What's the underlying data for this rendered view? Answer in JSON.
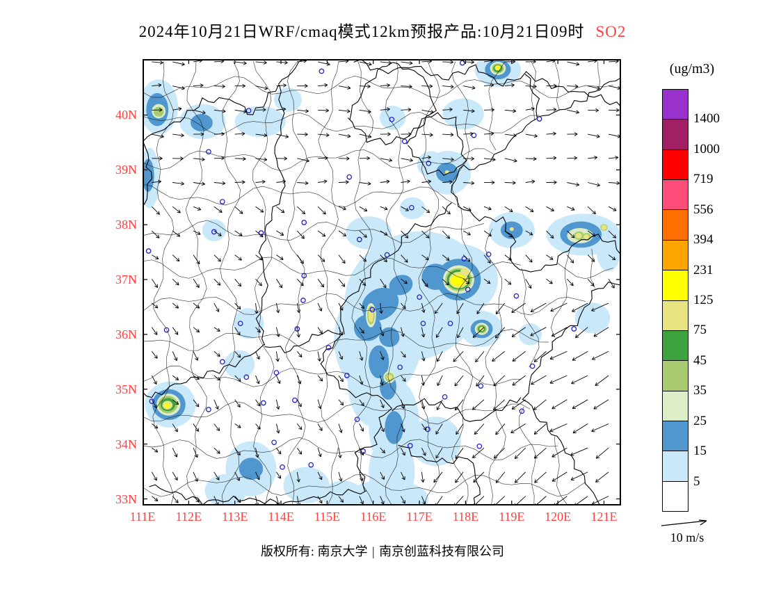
{
  "title": {
    "main": "2024年10月21日WRF/cmaq模式12km预报产品:10月21日09时",
    "species": "SO2"
  },
  "footer": {
    "left": "版权所有: 南京大学",
    "divider": "|",
    "right": "南京创蓝科技有限公司"
  },
  "colors": {
    "tick_label": "#FF4040",
    "species_label": "#FF4040",
    "station_marker": "#2222CC",
    "frame": "#000000"
  },
  "chart_data": {
    "type": "heatmap",
    "title": "2024年10月21日WRF/cmaq模式12km预报产品:10月21日09时 SO2",
    "variable": "SO2",
    "units_label": "(ug/m3)",
    "x_ticks": [
      "111E",
      "112E",
      "113E",
      "114E",
      "115E",
      "116E",
      "117E",
      "118E",
      "119E",
      "120E",
      "121E"
    ],
    "x_tick_values": [
      111,
      112,
      113,
      114,
      115,
      116,
      117,
      118,
      119,
      120,
      121
    ],
    "y_ticks": [
      "33N",
      "34N",
      "35N",
      "36N",
      "37N",
      "38N",
      "39N",
      "40N"
    ],
    "y_tick_values": [
      33,
      34,
      35,
      36,
      37,
      38,
      39,
      40
    ],
    "xlim": [
      111,
      121.37
    ],
    "ylim": [
      32.88,
      41.02
    ],
    "grid": false,
    "colorbar": {
      "units": "(ug/m3)",
      "levels_top_to_bottom": [
        1400,
        1000,
        719,
        556,
        394,
        231,
        125,
        75,
        45,
        35,
        25,
        15,
        5
      ],
      "colors_bottom_to_top": [
        "#FFFFFF",
        "#C9E8FA",
        "#4F97CE",
        "#DCEDC8",
        "#A9CC70",
        "#3EA23E",
        "#E8E482",
        "#FFFF00",
        "#FFA500",
        "#FF7000",
        "#FF4D79",
        "#FF0000",
        "#A12064",
        "#9932CC"
      ]
    },
    "wind_legend": {
      "label": "10 m/s"
    },
    "hotspots": {
      "L5": [
        [
          111.35,
          40.15,
          0.42,
          0.5
        ],
        [
          112.3,
          39.88,
          0.5,
          0.32
        ],
        [
          113.55,
          39.88,
          0.55,
          0.28
        ],
        [
          114.15,
          40.28,
          0.3,
          0.22
        ],
        [
          111.15,
          38.85,
          0.22,
          0.55
        ],
        [
          117.62,
          38.95,
          0.5,
          0.4
        ],
        [
          117.95,
          40.02,
          0.45,
          0.28
        ],
        [
          118.7,
          40.82,
          0.5,
          0.3
        ],
        [
          116.42,
          39.95,
          0.28,
          0.22
        ],
        [
          117.25,
          39.1,
          0.3,
          0.24
        ],
        [
          119.0,
          37.9,
          0.5,
          0.33
        ],
        [
          120.55,
          37.82,
          0.8,
          0.38
        ],
        [
          121.1,
          37.6,
          0.28,
          0.45
        ],
        [
          116.9,
          36.7,
          1.55,
          1.15,
          -25
        ],
        [
          116.1,
          35.9,
          0.95,
          1.05
        ],
        [
          116.05,
          35.1,
          0.6,
          0.8
        ],
        [
          116.45,
          34.35,
          0.55,
          0.85
        ],
        [
          116.4,
          33.5,
          0.5,
          0.65
        ],
        [
          116.3,
          33.0,
          0.9,
          0.35
        ],
        [
          117.85,
          37.0,
          0.85,
          0.65
        ],
        [
          118.35,
          36.1,
          0.45,
          0.33
        ],
        [
          115.9,
          37.85,
          0.5,
          0.3
        ],
        [
          113.3,
          36.2,
          0.33,
          0.28
        ],
        [
          113.1,
          35.45,
          0.33,
          0.26
        ],
        [
          111.6,
          34.72,
          0.55,
          0.42
        ],
        [
          113.35,
          33.55,
          0.55,
          0.5
        ],
        [
          112.8,
          33.15,
          0.45,
          0.3
        ],
        [
          114.55,
          33.25,
          0.5,
          0.33
        ],
        [
          115.35,
          33.05,
          0.45,
          0.28
        ],
        [
          117.35,
          34.05,
          0.55,
          0.45
        ],
        [
          120.75,
          36.3,
          0.38,
          0.28
        ],
        [
          119.4,
          36.0,
          0.25,
          0.2
        ],
        [
          116.85,
          38.3,
          0.28,
          0.2
        ],
        [
          112.55,
          37.9,
          0.26,
          0.2
        ]
      ],
      "L15": [
        [
          116.15,
          36.55,
          0.42,
          0.28,
          -30
        ],
        [
          115.88,
          36.12,
          0.3,
          0.24
        ],
        [
          116.35,
          35.95,
          0.22,
          0.18
        ],
        [
          116.12,
          35.5,
          0.22,
          0.3
        ],
        [
          116.32,
          35.05,
          0.18,
          0.24
        ],
        [
          117.35,
          37.05,
          0.3,
          0.24
        ],
        [
          117.85,
          37.0,
          0.48,
          0.38
        ],
        [
          116.6,
          36.9,
          0.26,
          0.18,
          -20
        ],
        [
          113.35,
          33.55,
          0.26,
          0.2
        ],
        [
          111.57,
          34.72,
          0.36,
          0.28
        ],
        [
          111.32,
          40.1,
          0.24,
          0.3
        ],
        [
          112.28,
          39.86,
          0.24,
          0.16
        ],
        [
          111.12,
          38.9,
          0.13,
          0.3
        ],
        [
          120.5,
          37.82,
          0.45,
          0.24
        ],
        [
          118.7,
          40.83,
          0.28,
          0.18
        ],
        [
          119.0,
          37.9,
          0.24,
          0.16
        ],
        [
          118.35,
          36.1,
          0.24,
          0.17
        ],
        [
          116.45,
          34.3,
          0.2,
          0.3
        ],
        [
          115.95,
          36.35,
          0.16,
          0.3
        ],
        [
          117.6,
          38.95,
          0.24,
          0.18
        ]
      ],
      "L25": [
        [
          117.85,
          37.0,
          0.34,
          0.26
        ],
        [
          111.56,
          34.72,
          0.26,
          0.2
        ],
        [
          111.35,
          40.07,
          0.15,
          0.13
        ],
        [
          118.7,
          40.85,
          0.17,
          0.12
        ],
        [
          118.35,
          36.1,
          0.15,
          0.11
        ],
        [
          116.35,
          35.22,
          0.13,
          0.11
        ],
        [
          115.95,
          36.35,
          0.11,
          0.22
        ],
        [
          120.48,
          37.8,
          0.28,
          0.14
        ]
      ],
      "L35": [
        [
          117.85,
          37.0,
          0.29,
          0.21
        ],
        [
          111.55,
          34.72,
          0.21,
          0.16
        ],
        [
          118.7,
          40.85,
          0.13,
          0.09
        ],
        [
          111.35,
          40.06,
          0.11,
          0.09
        ],
        [
          118.35,
          36.1,
          0.11,
          0.08
        ],
        [
          116.35,
          35.22,
          0.1,
          0.08
        ],
        [
          120.46,
          37.8,
          0.11,
          0.08
        ],
        [
          120.63,
          37.78,
          0.09,
          0.07
        ],
        [
          115.95,
          36.35,
          0.08,
          0.17
        ],
        [
          121.0,
          37.95,
          0.08,
          0.06
        ]
      ],
      "L45": [
        [
          117.85,
          37.0,
          0.25,
          0.18
        ],
        [
          111.55,
          34.72,
          0.16,
          0.12
        ],
        [
          118.7,
          40.85,
          0.1,
          0.07
        ],
        [
          118.35,
          36.1,
          0.08,
          0.06
        ]
      ],
      "L75": [
        [
          117.85,
          36.99,
          0.21,
          0.15
        ],
        [
          117.98,
          37.13,
          0.1,
          0.08
        ],
        [
          111.54,
          34.71,
          0.11,
          0.08
        ],
        [
          115.95,
          36.35,
          0.055,
          0.13
        ],
        [
          116.35,
          35.22,
          0.065,
          0.05
        ],
        [
          120.45,
          37.8,
          0.07,
          0.05
        ],
        [
          120.62,
          37.78,
          0.06,
          0.045
        ],
        [
          121.0,
          37.95,
          0.06,
          0.045
        ],
        [
          119.0,
          37.92,
          0.045,
          0.035
        ],
        [
          118.7,
          40.86,
          0.07,
          0.05
        ],
        [
          117.6,
          38.96,
          0.045,
          0.035
        ],
        [
          118.35,
          36.1,
          0.05,
          0.04
        ]
      ],
      "L125": [
        [
          117.84,
          36.98,
          0.16,
          0.11
        ],
        [
          118.7,
          40.86,
          0.045,
          0.035
        ],
        [
          111.53,
          34.7,
          0.055,
          0.04
        ]
      ]
    },
    "stations": [
      [
        116.4,
        39.92
      ],
      [
        117.2,
        39.12
      ],
      [
        114.5,
        38.04
      ],
      [
        112.55,
        37.87
      ],
      [
        113.62,
        34.75
      ],
      [
        117.0,
        36.68
      ],
      [
        118.05,
        36.82
      ],
      [
        120.35,
        36.1
      ],
      [
        115.48,
        38.87
      ],
      [
        116.83,
        38.31
      ],
      [
        115.7,
        37.73
      ],
      [
        114.5,
        37.07
      ],
      [
        114.48,
        36.62
      ],
      [
        114.35,
        36.1
      ],
      [
        116.3,
        37.45
      ],
      [
        115.98,
        36.45
      ],
      [
        115.43,
        35.25
      ],
      [
        116.58,
        35.4
      ],
      [
        117.08,
        36.2
      ],
      [
        119.1,
        36.7
      ],
      [
        119.45,
        35.42
      ],
      [
        118.33,
        35.06
      ],
      [
        117.55,
        34.86
      ],
      [
        117.18,
        34.27
      ],
      [
        114.3,
        34.8
      ],
      [
        112.43,
        34.63
      ],
      [
        113.9,
        35.3
      ],
      [
        113.25,
        35.22
      ],
      [
        115.03,
        35.76
      ],
      [
        118.18,
        39.63
      ],
      [
        119.6,
        39.93
      ],
      [
        114.88,
        40.8
      ],
      [
        117.93,
        40.95
      ],
      [
        113.12,
        36.2
      ],
      [
        112.73,
        35.5
      ],
      [
        111.52,
        36.08
      ],
      [
        111.2,
        34.78
      ],
      [
        115.65,
        34.45
      ],
      [
        114.65,
        33.62
      ],
      [
        113.85,
        34.03
      ],
      [
        114.03,
        33.58
      ],
      [
        116.8,
        33.97
      ],
      [
        115.78,
        33.87
      ],
      [
        119.22,
        34.6
      ],
      [
        118.3,
        33.96
      ],
      [
        118.5,
        37.46
      ],
      [
        117.97,
        37.38
      ],
      [
        117.67,
        36.2
      ],
      [
        113.3,
        40.08
      ],
      [
        112.43,
        39.33
      ],
      [
        112.73,
        38.42
      ],
      [
        113.57,
        37.85
      ],
      [
        111.13,
        37.52
      ],
      [
        116.68,
        39.52
      ]
    ]
  }
}
